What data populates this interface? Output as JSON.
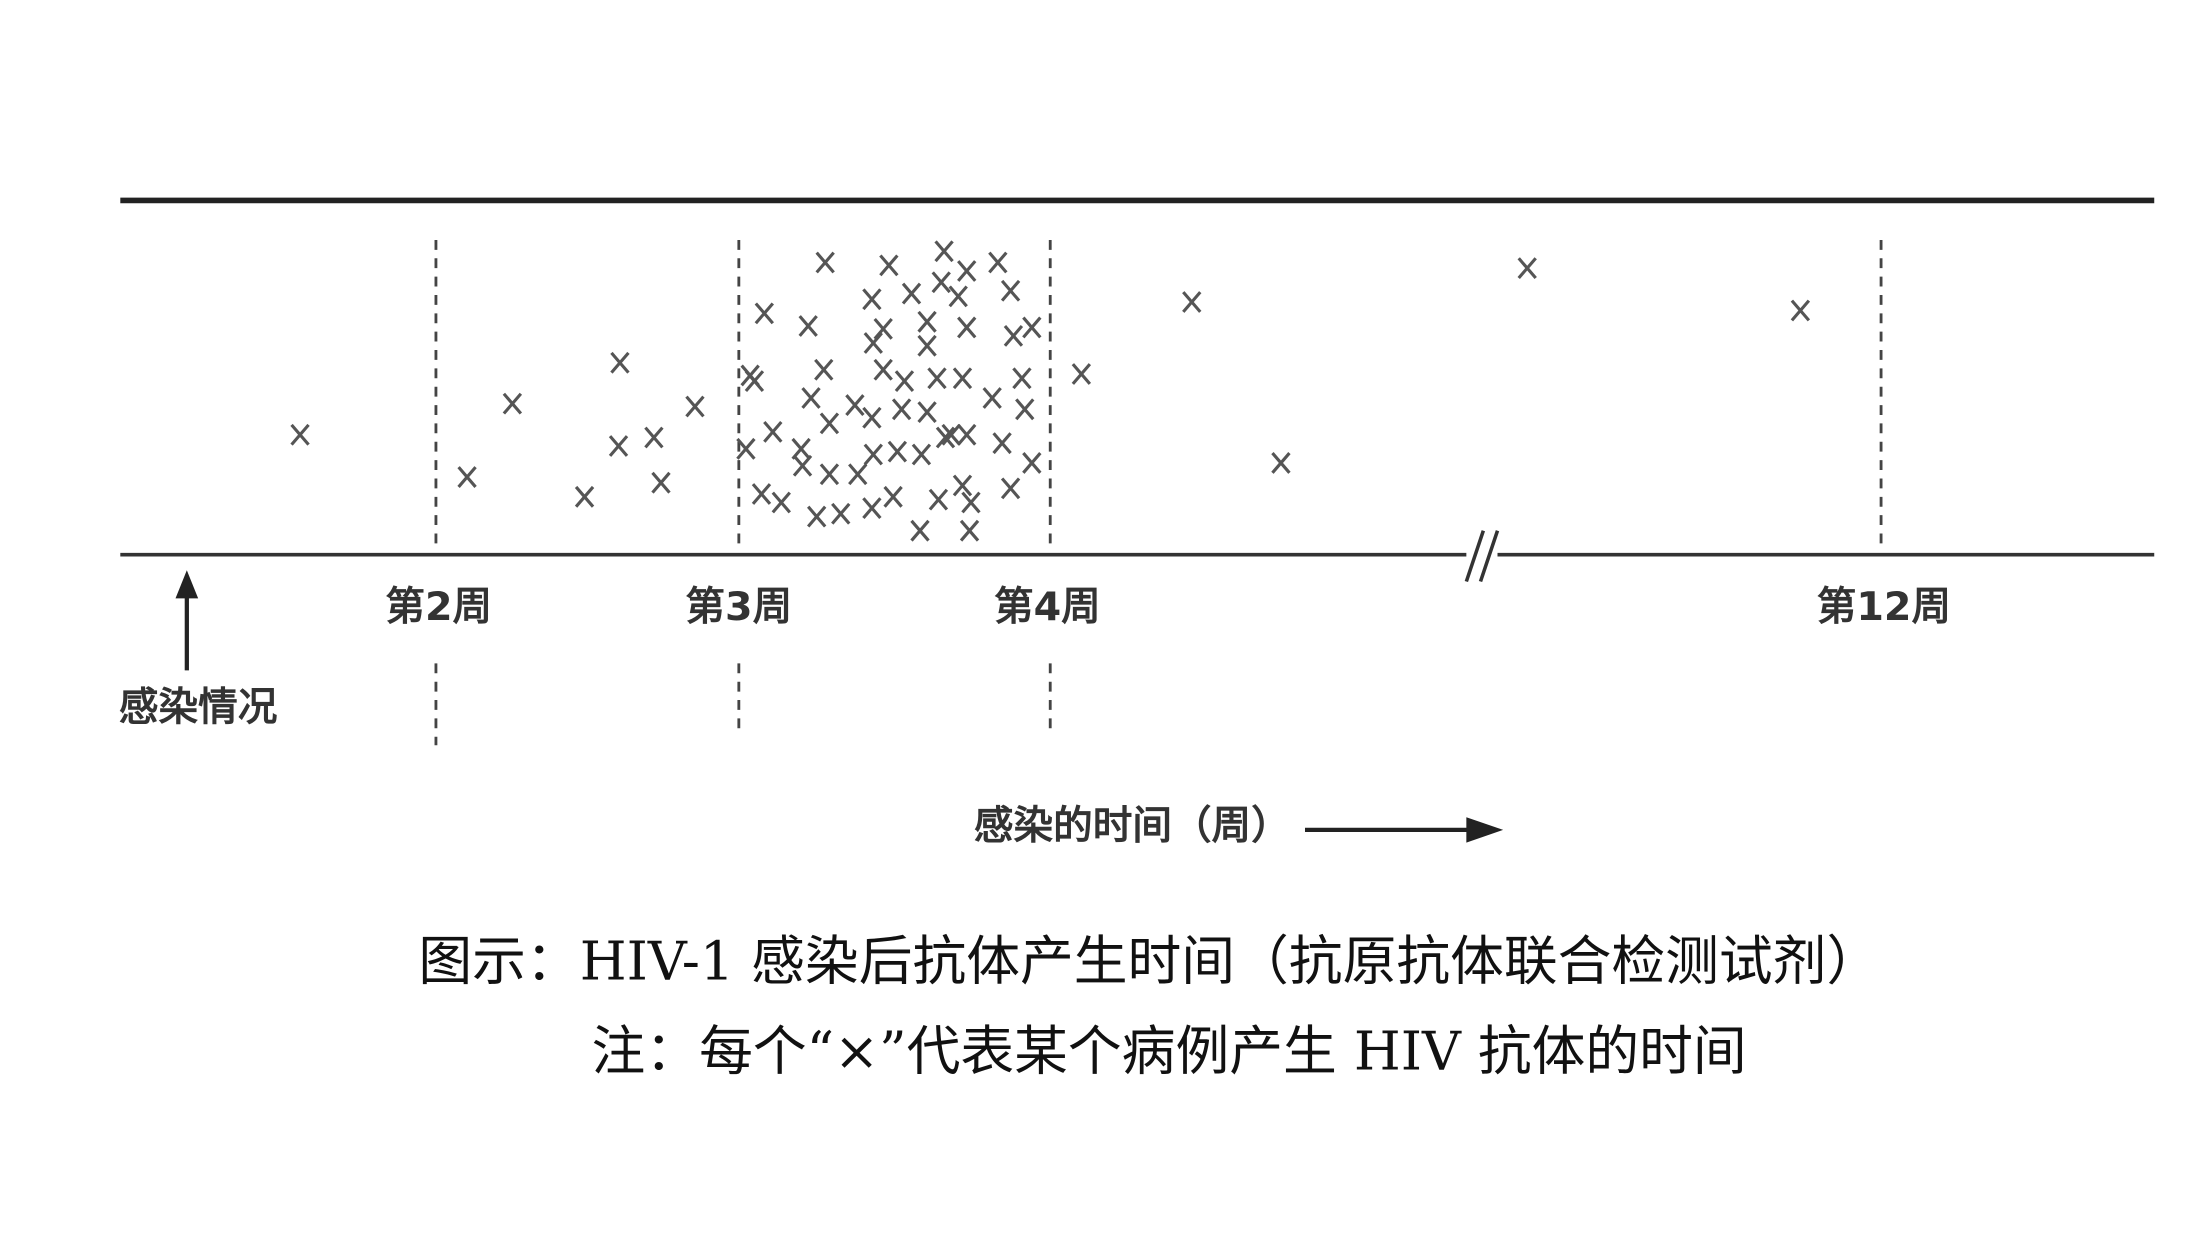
{
  "diagram": {
    "week_labels": [
      "第2周",
      "第3周",
      "第4周",
      "第12周"
    ],
    "infection_label": "感染情况",
    "time_axis_label": "感染的时间（周）"
  },
  "caption": {
    "title": "图示：HIV-1 感染后抗体产生时间（抗原抗体联合检测试剂）",
    "note": "注：每个“×”代表某个病例产生 HIV 抗体的时间"
  }
}
